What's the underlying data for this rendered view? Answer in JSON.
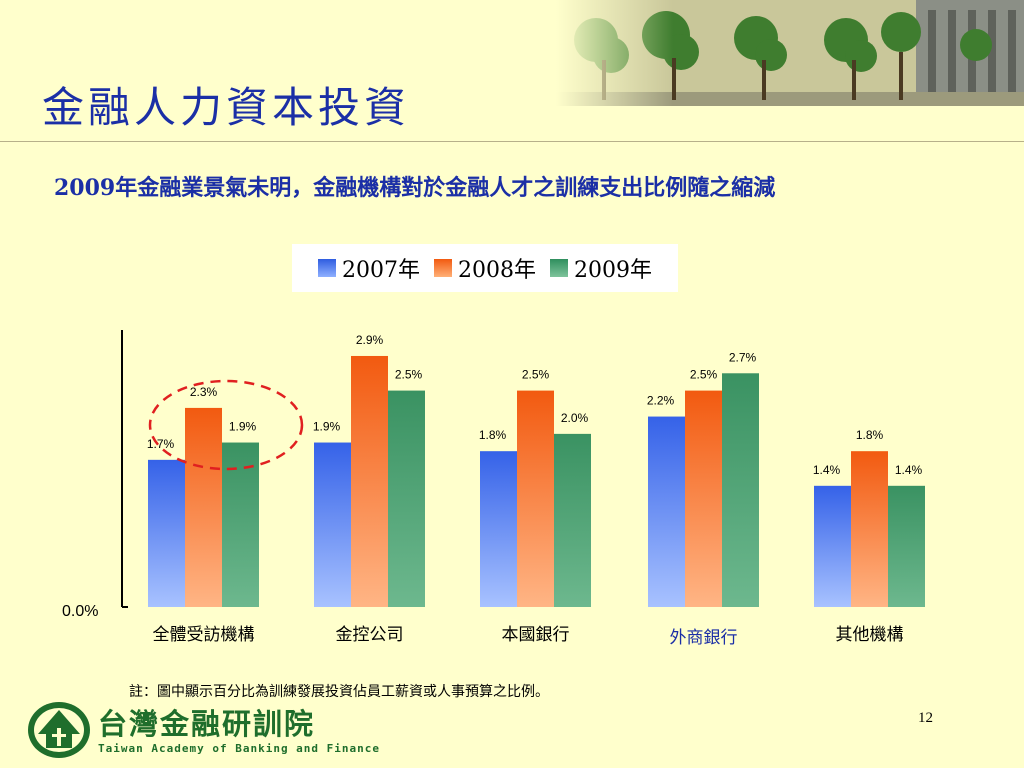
{
  "slide": {
    "title": "金融人力資本投資",
    "subtitle": "2009年金融業景氣未明，金融機構對於金融人才之訓練支出比例隨之縮減",
    "note": "註：圖中顯示百分比為訓練發展投資佔員工薪資或人事預算之比例。",
    "page_number": "12"
  },
  "logo": {
    "name_cn": "台灣金融研訓院",
    "name_en": "Taiwan Academy of Banking and Finance"
  },
  "colors": {
    "title": "#1b2fa6",
    "background": "#ffffcc",
    "series_2007": "#4169e1",
    "series_2008": "#f26522",
    "series_2009": "#3f9b6b",
    "highlight_category": "#1b2fa6",
    "highlight_ellipse": "#e02020"
  },
  "chart_data": {
    "type": "bar",
    "categories": [
      "全體受訪機構",
      "金控公司",
      "本國銀行",
      "外商銀行",
      "其他機構"
    ],
    "series": [
      {
        "name": "2007年",
        "values": [
          1.7,
          1.9,
          1.8,
          2.2,
          1.4
        ],
        "labels": [
          "1.7%",
          "1.9%",
          "1.8%",
          "2.2%",
          "1.4%"
        ]
      },
      {
        "name": "2008年",
        "values": [
          2.3,
          2.9,
          2.5,
          2.5,
          1.8
        ],
        "labels": [
          "2.3%",
          "2.9%",
          "2.5%",
          "2.5%",
          "1.8%"
        ]
      },
      {
        "name": "2009年",
        "values": [
          1.9,
          2.5,
          2.0,
          2.7,
          1.4
        ],
        "labels": [
          "1.9%",
          "2.5%",
          "2.0%",
          "2.7%",
          "1.4%"
        ]
      }
    ],
    "y_axis_label": "0.0%",
    "ylim": [
      0,
      3.2
    ],
    "legend_position": "top",
    "highlighted_category": "外商銀行",
    "annotation": "dashed red ellipse around 全體受訪機構 2008年 and 2009年 bars"
  }
}
